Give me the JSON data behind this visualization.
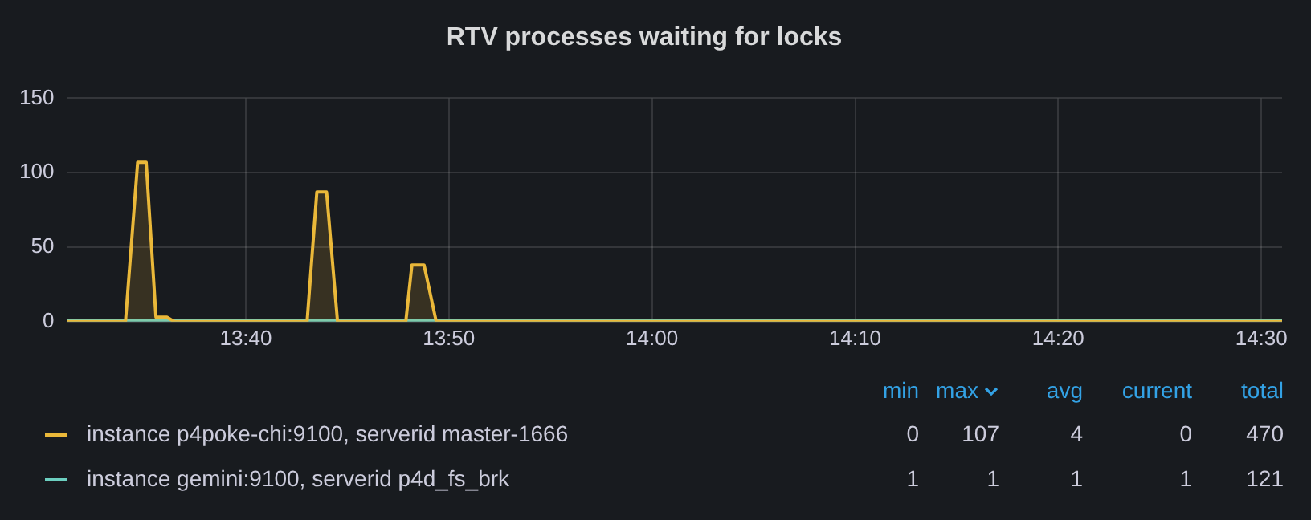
{
  "chart_data": {
    "type": "line",
    "title": "RTV processes waiting for locks",
    "xlim": [
      13.52,
      14.517
    ],
    "xticks": [
      {
        "value": 13.6667,
        "label": "13:40"
      },
      {
        "value": 13.8333,
        "label": "13:50"
      },
      {
        "value": 14,
        "label": "14:00"
      },
      {
        "value": 14.1667,
        "label": "14:10"
      },
      {
        "value": 14.3333,
        "label": "14:20"
      },
      {
        "value": 14.5,
        "label": "14:30"
      }
    ],
    "ylim": [
      0,
      150
    ],
    "yticks": [
      0,
      50,
      100,
      150
    ],
    "grid": true,
    "legend": "bottom",
    "marker": "none",
    "line_style": "solid",
    "series": [
      {
        "name": "instance p4poke-chi:9100, serverid master-1666",
        "type": "area",
        "color": "#eab839",
        "x": [
          13.52,
          13.568,
          13.578,
          13.585,
          13.593,
          13.602,
          13.608,
          13.717,
          13.725,
          13.733,
          13.742,
          13.798,
          13.803,
          13.813,
          13.823,
          14.517
        ],
        "values": [
          0,
          0,
          107,
          107,
          3,
          3,
          0,
          0,
          87,
          87,
          0,
          0,
          38,
          38,
          0,
          0
        ]
      },
      {
        "name": "instance gemini:9100, serverid p4d_fs_brk",
        "type": "line",
        "color": "#6ccfc0",
        "x": [
          13.52,
          14.517
        ],
        "values": [
          1,
          1
        ]
      }
    ],
    "annotations": [
      "min",
      "max",
      "avg",
      "current",
      "total",
      "0",
      "107",
      "4",
      "0",
      "470",
      "1",
      "1",
      "1",
      "1",
      "121"
    ]
  }
}
